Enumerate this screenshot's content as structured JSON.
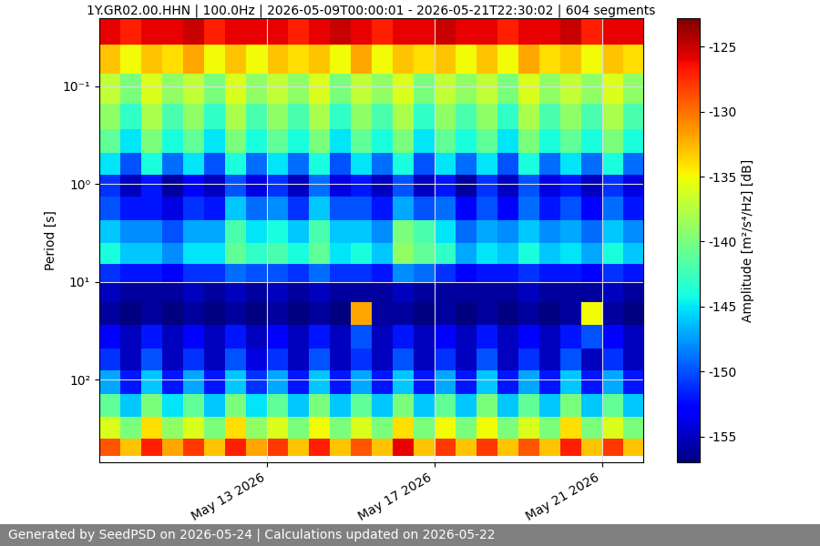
{
  "chart_data": {
    "type": "heatmap",
    "title": "1Y.GR02.00.HHN | 100.0Hz | 2026-05-09T00:00:01 - 2026-05-21T22:30:02 | 604 segments",
    "y_label": "Period [s]",
    "colorbar_label": "Amplitude [m²/s⁴/Hz] [dB]",
    "footer": "Generated by SeedPSD on 2026-05-24 | Calculations updated on 2026-05-22",
    "log": "y",
    "grid": true,
    "color": "jet",
    "xlim": [
      "2026-05-09T00:00",
      "2026-05-21T23:30"
    ],
    "xticks": [
      {
        "value": "2026-05-13T00:00",
        "label": "May 13 2026"
      },
      {
        "value": "2026-05-17T00:00",
        "label": "May 17 2026"
      },
      {
        "value": "2026-05-21T00:00",
        "label": "May 21 2026"
      }
    ],
    "ylim": [
      700,
      0.02
    ],
    "yticks": [
      {
        "value": 0.1,
        "label": "10⁻¹"
      },
      {
        "value": 1,
        "label": "10⁰"
      },
      {
        "value": 10,
        "label": "10¹"
      },
      {
        "value": 100,
        "label": "10²"
      }
    ],
    "colorbar_range": [
      -157,
      -122.8
    ],
    "colorbar_ticks": [
      -155,
      -150,
      -145,
      -140,
      -135,
      -130,
      -125
    ],
    "x": [
      "2026-05-09T06:00",
      "2026-05-09T18:00",
      "2026-05-10T06:00",
      "2026-05-10T18:00",
      "2026-05-11T06:00",
      "2026-05-11T18:00",
      "2026-05-12T06:00",
      "2026-05-12T18:00",
      "2026-05-13T06:00",
      "2026-05-13T18:00",
      "2026-05-14T06:00",
      "2026-05-14T18:00",
      "2026-05-15T06:00",
      "2026-05-15T18:00",
      "2026-05-16T06:00",
      "2026-05-16T18:00",
      "2026-05-17T06:00",
      "2026-05-17T18:00",
      "2026-05-18T06:00",
      "2026-05-18T18:00",
      "2026-05-19T06:00",
      "2026-05-19T18:00",
      "2026-05-20T06:00",
      "2026-05-20T18:00",
      "2026-05-21T06:00",
      "2026-05-21T18:00"
    ],
    "periods": [
      0.025,
      0.05,
      0.1,
      0.2,
      0.35,
      0.6,
      1.0,
      1.7,
      3,
      5,
      8,
      12,
      20,
      35,
      60,
      100,
      180,
      300,
      500
    ],
    "cells": [
      [
        -126,
        -127,
        -126,
        -126,
        -125,
        -127,
        -126,
        -126,
        -126,
        -127,
        -126,
        -125,
        -126,
        -127,
        -126,
        -126,
        -125,
        -126,
        -126,
        -127,
        -126,
        -126,
        -125,
        -127,
        -126,
        -126
      ],
      [
        -133,
        -135,
        -133,
        -134,
        -132,
        -135,
        -133,
        -135,
        -133,
        -134,
        -133,
        -135,
        -132,
        -135,
        -133,
        -134,
        -133,
        -135,
        -133,
        -135,
        -132,
        -134,
        -133,
        -135,
        -133,
        -134
      ],
      [
        -137,
        -140,
        -136,
        -139,
        -137,
        -140,
        -136,
        -139,
        -137,
        -139,
        -136,
        -140,
        -137,
        -139,
        -136,
        -140,
        -137,
        -139,
        -137,
        -140,
        -136,
        -139,
        -137,
        -139,
        -136,
        -139
      ],
      [
        -139,
        -143,
        -138,
        -142,
        -139,
        -143,
        -138,
        -142,
        -139,
        -142,
        -138,
        -143,
        -139,
        -142,
        -138,
        -143,
        -139,
        -142,
        -139,
        -143,
        -138,
        -142,
        -139,
        -142,
        -138,
        -142
      ],
      [
        -141,
        -145,
        -140,
        -144,
        -141,
        -145,
        -140,
        -144,
        -141,
        -144,
        -140,
        -145,
        -141,
        -144,
        -140,
        -145,
        -141,
        -144,
        -141,
        -145,
        -140,
        -144,
        -141,
        -144,
        -140,
        -144
      ],
      [
        -145,
        -150,
        -144,
        -149,
        -145,
        -150,
        -144,
        -149,
        -145,
        -149,
        -144,
        -150,
        -145,
        -149,
        -144,
        -150,
        -145,
        -149,
        -145,
        -150,
        -144,
        -149,
        -145,
        -149,
        -144,
        -149
      ],
      [
        -151,
        -155,
        -152,
        -156,
        -153,
        -155,
        -150,
        -154,
        -151,
        -155,
        -149,
        -154,
        -152,
        -155,
        -150,
        -155,
        -152,
        -156,
        -151,
        -155,
        -150,
        -154,
        -152,
        -155,
        -151,
        -154
      ],
      [
        -150,
        -152,
        -152,
        -154,
        -151,
        -152,
        -146,
        -149,
        -148,
        -151,
        -146,
        -150,
        -150,
        -152,
        -147,
        -150,
        -149,
        -153,
        -150,
        -153,
        -149,
        -152,
        -150,
        -153,
        -149,
        -152
      ],
      [
        -146,
        -148,
        -148,
        -150,
        -147,
        -147,
        -142,
        -145,
        -144,
        -146,
        -142,
        -146,
        -146,
        -148,
        -140,
        -142,
        -145,
        -149,
        -147,
        -148,
        -146,
        -148,
        -147,
        -149,
        -146,
        -148
      ],
      [
        -144,
        -146,
        -146,
        -148,
        -145,
        -145,
        -141,
        -143,
        -142,
        -144,
        -141,
        -145,
        -144,
        -146,
        -139,
        -141,
        -143,
        -147,
        -145,
        -146,
        -144,
        -146,
        -145,
        -147,
        -144,
        -146
      ],
      [
        -151,
        -152,
        -152,
        -153,
        -151,
        -151,
        -149,
        -150,
        -150,
        -151,
        -149,
        -151,
        -151,
        -152,
        -148,
        -149,
        -151,
        -153,
        -152,
        -152,
        -151,
        -152,
        -152,
        -153,
        -151,
        -152
      ],
      [
        -155,
        -156,
        -156,
        -156,
        -155,
        -156,
        -155,
        -156,
        -155,
        -156,
        -155,
        -156,
        -156,
        -156,
        -155,
        -156,
        -156,
        -156,
        -156,
        -156,
        -155,
        -156,
        -156,
        -156,
        -155,
        -156
      ],
      [
        -156,
        -157,
        -156,
        -157,
        -156,
        -157,
        -156,
        -157,
        -156,
        -157,
        -156,
        -157,
        -132,
        -156,
        -156,
        -157,
        -156,
        -157,
        -156,
        -157,
        -156,
        -157,
        -156,
        -135,
        -156,
        -157
      ],
      [
        -153,
        -155,
        -152,
        -155,
        -153,
        -155,
        -152,
        -155,
        -153,
        -155,
        -152,
        -155,
        -150,
        -155,
        -152,
        -155,
        -153,
        -155,
        -152,
        -155,
        -153,
        -155,
        -152,
        -150,
        -153,
        -155
      ],
      [
        -151,
        -155,
        -150,
        -155,
        -151,
        -155,
        -150,
        -154,
        -151,
        -155,
        -150,
        -155,
        -151,
        -155,
        -150,
        -155,
        -151,
        -155,
        -150,
        -155,
        -151,
        -155,
        -150,
        -155,
        -151,
        -155
      ],
      [
        -147,
        -152,
        -146,
        -152,
        -147,
        -152,
        -146,
        -151,
        -147,
        -152,
        -146,
        -152,
        -147,
        -152,
        -146,
        -152,
        -147,
        -152,
        -146,
        -152,
        -147,
        -152,
        -146,
        -152,
        -147,
        -152
      ],
      [
        -141,
        -146,
        -140,
        -145,
        -141,
        -146,
        -140,
        -145,
        -141,
        -146,
        -140,
        -146,
        -141,
        -146,
        -140,
        -146,
        -141,
        -146,
        -140,
        -146,
        -141,
        -146,
        -140,
        -146,
        -141,
        -146
      ],
      [
        -136,
        -140,
        -134,
        -139,
        -136,
        -140,
        -134,
        -139,
        -136,
        -140,
        -135,
        -140,
        -136,
        -140,
        -134,
        -140,
        -135,
        -140,
        -135,
        -140,
        -136,
        -140,
        -134,
        -140,
        -136,
        -140
      ],
      [
        -129,
        -133,
        -127,
        -132,
        -128,
        -133,
        -127,
        -132,
        -128,
        -133,
        -127,
        -133,
        -129,
        -133,
        -126,
        -133,
        -128,
        -133,
        -128,
        -133,
        -129,
        -133,
        -127,
        -133,
        -128,
        -133
      ]
    ]
  }
}
